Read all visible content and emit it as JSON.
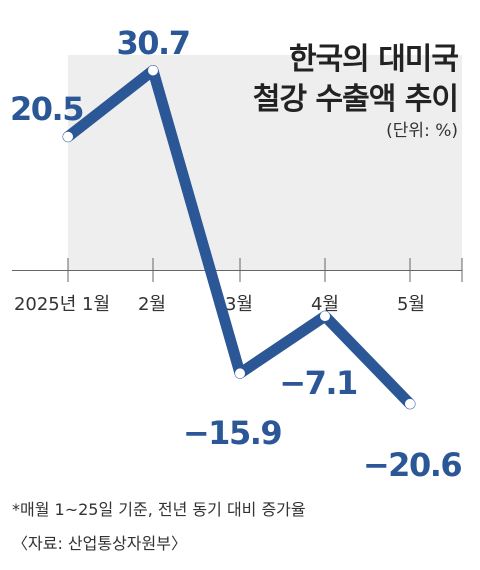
{
  "chart_data": {
    "type": "line",
    "title_lines": [
      "한국의 대미국",
      "철강 수출액 추이"
    ],
    "unit": "(단위: %)",
    "categories": [
      "2025년 1월",
      "2월",
      "3월",
      "4월",
      "5월"
    ],
    "values": [
      20.5,
      30.7,
      -15.9,
      -7.1,
      -20.6
    ],
    "value_labels": [
      "20.5",
      "30.7",
      "−15.9",
      "−7.1",
      "−20.6"
    ],
    "ylim": [
      -25,
      35
    ],
    "grid": false,
    "footnote": "*매월 1~25일 기준, 전년 동기 대비 증가율",
    "source": "〈자료: 산업통상자원부〉"
  },
  "colors": {
    "line": "#2b5797",
    "band": "#eeeeee",
    "marker_fill": "#ffffff",
    "baseline": "#666666"
  }
}
